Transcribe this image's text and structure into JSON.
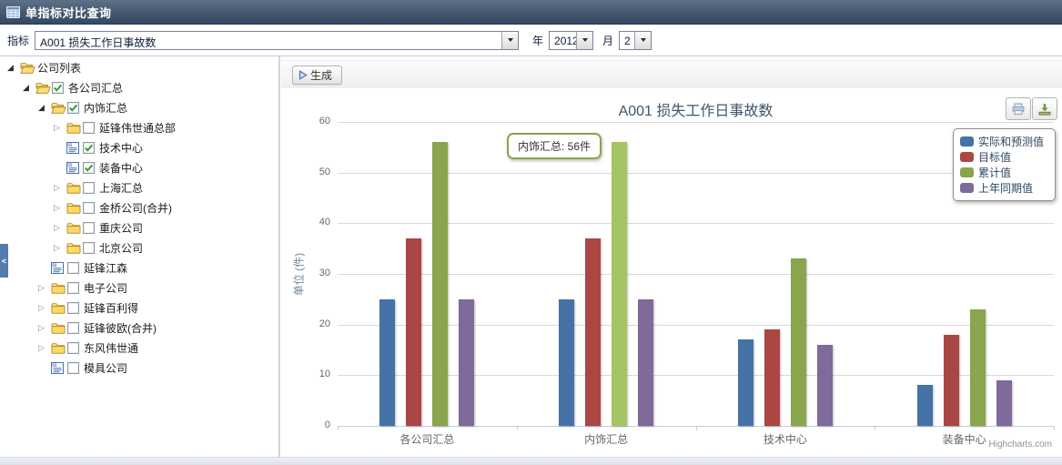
{
  "header": {
    "title": "单指标对比查询",
    "icon": "table-grid-icon"
  },
  "toolbar": {
    "indicator_label": "指标",
    "indicator_value": "A001 损失工作日事故数",
    "year_label": "年",
    "year_value": "2012",
    "month_label": "月",
    "month_value": "2"
  },
  "chart_toolbar": {
    "generate_label": "生成",
    "generate_icon": "play-icon"
  },
  "sidebar": {
    "collapse_label": "<",
    "tree": [
      {
        "label": "公司列表",
        "depth": 0,
        "expander": "expanded",
        "icon": "folder-open",
        "checked": null
      },
      {
        "label": "各公司汇总",
        "depth": 1,
        "expander": "expanded",
        "icon": "folder-open",
        "checked": true
      },
      {
        "label": "内饰汇总",
        "depth": 2,
        "expander": "expanded",
        "icon": "folder-open",
        "checked": true
      },
      {
        "label": "延锋伟世通总部",
        "depth": 3,
        "expander": "collapsed",
        "icon": "folder-closed",
        "checked": false
      },
      {
        "label": "技术中心",
        "depth": 3,
        "expander": "none",
        "icon": "leaf",
        "checked": true
      },
      {
        "label": "装备中心",
        "depth": 3,
        "expander": "none",
        "icon": "leaf",
        "checked": true
      },
      {
        "label": "上海汇总",
        "depth": 3,
        "expander": "collapsed",
        "icon": "folder-closed",
        "checked": false
      },
      {
        "label": "金桥公司(合并)",
        "depth": 3,
        "expander": "collapsed",
        "icon": "folder-closed",
        "checked": false
      },
      {
        "label": "重庆公司",
        "depth": 3,
        "expander": "collapsed",
        "icon": "folder-closed",
        "checked": false
      },
      {
        "label": "北京公司",
        "depth": 3,
        "expander": "collapsed",
        "icon": "folder-closed",
        "checked": false
      },
      {
        "label": "延锋江森",
        "depth": 2,
        "expander": "none",
        "icon": "leaf",
        "checked": false
      },
      {
        "label": "电子公司",
        "depth": 2,
        "expander": "collapsed",
        "icon": "folder-closed",
        "checked": false
      },
      {
        "label": "延锋百利得",
        "depth": 2,
        "expander": "collapsed",
        "icon": "folder-closed",
        "checked": false
      },
      {
        "label": "延锋彼欧(合并)",
        "depth": 2,
        "expander": "collapsed",
        "icon": "folder-closed",
        "checked": false
      },
      {
        "label": "东风伟世通",
        "depth": 2,
        "expander": "collapsed",
        "icon": "folder-closed",
        "checked": false
      },
      {
        "label": "模具公司",
        "depth": 2,
        "expander": "none",
        "icon": "leaf",
        "checked": false
      }
    ]
  },
  "export_buttons": {
    "print": "print-icon",
    "download": "download-icon"
  },
  "chart_data": {
    "type": "bar",
    "title": "A001 损失工作日事故数",
    "categories": [
      "各公司汇总",
      "内饰汇总",
      "技术中心",
      "装备中心"
    ],
    "series": [
      {
        "name": "实际和预测值",
        "color": "#4572A7",
        "values": [
          25,
          25,
          17,
          8
        ]
      },
      {
        "name": "目标值",
        "color": "#AA4643",
        "values": [
          37,
          37,
          19,
          18
        ]
      },
      {
        "name": "累计值",
        "color": "#89A54E",
        "values": [
          56,
          56,
          33,
          23
        ]
      },
      {
        "name": "上年同期值",
        "color": "#80699B",
        "values": [
          25,
          25,
          16,
          9
        ]
      }
    ],
    "ylabel": "单位 (件)",
    "xlabel": "",
    "ylim": [
      0,
      60
    ],
    "ytick_step": 10,
    "grid": true,
    "legend_position": "top-right",
    "hover": {
      "category_index": 1,
      "series_index": 2,
      "color": "#A6C463"
    },
    "tooltip": {
      "text": "内饰汇总: 56件",
      "category": "内饰汇总",
      "series": "累计值",
      "value": 56
    },
    "credit": "Highcharts.com"
  }
}
